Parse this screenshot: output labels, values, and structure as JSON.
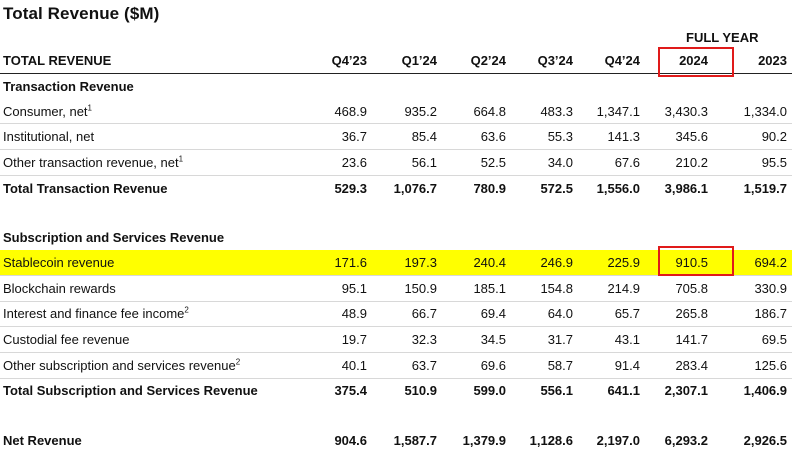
{
  "title": "Total Revenue ($M)",
  "full_year_label": "FULL YEAR",
  "header": {
    "label": "TOTAL REVENUE",
    "columns": [
      "Q4’23",
      "Q1’24",
      "Q2’24",
      "Q3’24",
      "Q4’24",
      "2024",
      "2023"
    ]
  },
  "sections": {
    "transaction": {
      "title": "Transaction Revenue",
      "rows": [
        {
          "label": "Consumer, net",
          "sup": "1",
          "values": [
            "468.9",
            "935.2",
            "664.8",
            "483.3",
            "1,347.1",
            "3,430.3",
            "1,334.0"
          ]
        },
        {
          "label": "Institutional, net",
          "sup": "",
          "values": [
            "36.7",
            "85.4",
            "63.6",
            "55.3",
            "141.3",
            "345.6",
            "90.2"
          ]
        },
        {
          "label": "Other transaction revenue, net",
          "sup": "1",
          "values": [
            "23.6",
            "56.1",
            "52.5",
            "34.0",
            "67.6",
            "210.2",
            "95.5"
          ]
        }
      ],
      "total": {
        "label": "Total Transaction Revenue",
        "values": [
          "529.3",
          "1,076.7",
          "780.9",
          "572.5",
          "1,556.0",
          "3,986.1",
          "1,519.7"
        ]
      }
    },
    "subscription": {
      "title": "Subscription and Services Revenue",
      "rows": [
        {
          "label": "Stablecoin revenue",
          "sup": "",
          "values": [
            "171.6",
            "197.3",
            "240.4",
            "246.9",
            "225.9",
            "910.5",
            "694.2"
          ]
        },
        {
          "label": "Blockchain rewards",
          "sup": "",
          "values": [
            "95.1",
            "150.9",
            "185.1",
            "154.8",
            "214.9",
            "705.8",
            "330.9"
          ]
        },
        {
          "label": "Interest and finance fee income",
          "sup": "2",
          "values": [
            "48.9",
            "66.7",
            "69.4",
            "64.0",
            "65.7",
            "265.8",
            "186.7"
          ]
        },
        {
          "label": "Custodial fee revenue",
          "sup": "",
          "values": [
            "19.7",
            "32.3",
            "34.5",
            "31.7",
            "43.1",
            "141.7",
            "69.5"
          ]
        },
        {
          "label": "Other subscription and services revenue",
          "sup": "2",
          "values": [
            "40.1",
            "63.7",
            "69.6",
            "58.7",
            "91.4",
            "283.4",
            "125.6"
          ]
        }
      ],
      "total": {
        "label": "Total Subscription and Services Revenue",
        "values": [
          "375.4",
          "510.9",
          "599.0",
          "556.1",
          "641.1",
          "2,307.1",
          "1,406.9"
        ]
      }
    }
  },
  "net_revenue": {
    "label": "Net Revenue",
    "values": [
      "904.6",
      "1,587.7",
      "1,379.9",
      "1,128.6",
      "2,197.0",
      "6,293.2",
      "2,926.5"
    ]
  },
  "colors": {
    "highlight": "#ffff00",
    "annotation_box": "#e01a1a"
  }
}
